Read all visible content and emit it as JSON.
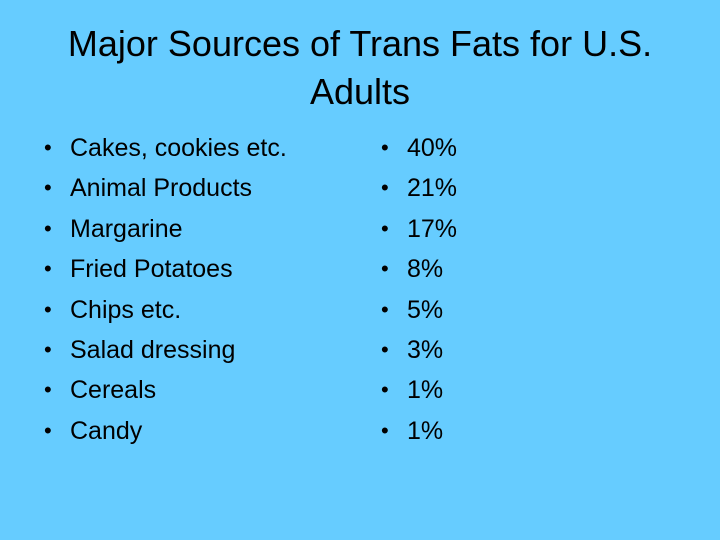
{
  "title": "Major Sources of Trans Fats for U.S. Adults",
  "items": [
    {
      "label": "Cakes, cookies etc.",
      "value": "40%"
    },
    {
      "label": "Animal Products",
      "value": "21%"
    },
    {
      "label": "Margarine",
      "value": "17%"
    },
    {
      "label": "Fried Potatoes",
      "value": "8%"
    },
    {
      "label": "Chips etc.",
      "value": "5%"
    },
    {
      "label": "Salad dressing",
      "value": "3%"
    },
    {
      "label": "Cereals",
      "value": "1%"
    },
    {
      "label": "Candy",
      "value": "1%"
    }
  ]
}
